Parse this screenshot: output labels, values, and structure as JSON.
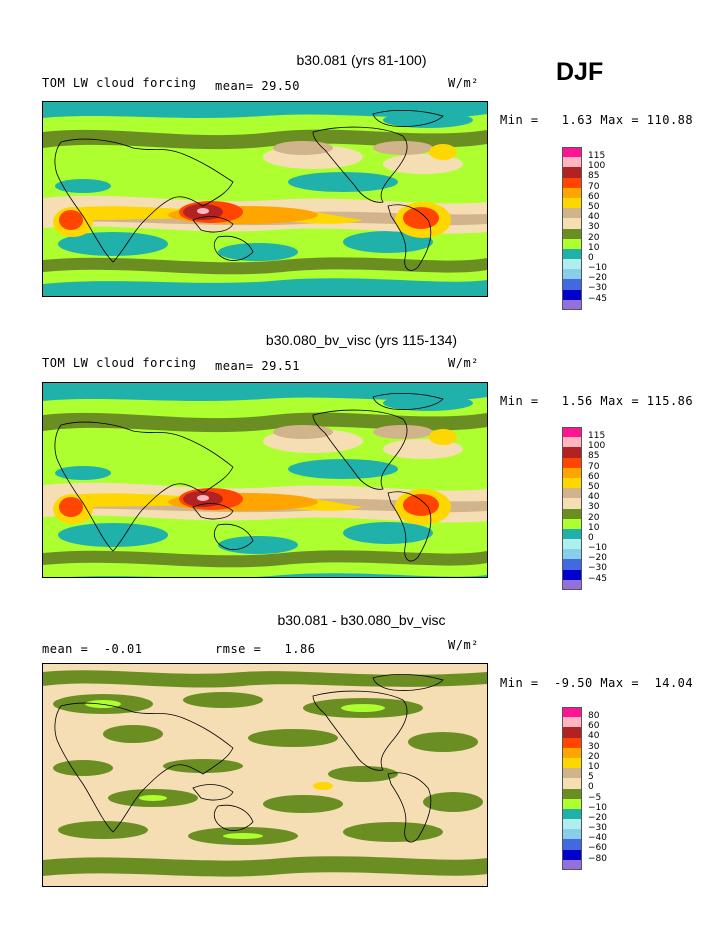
{
  "season": "DJF",
  "units_label": "W/m²",
  "panels": [
    {
      "title": "b30.081 (yrs 81-100)",
      "left_label": "TOM LW cloud forcing",
      "mean_label": "mean=",
      "mean_value": "29.50",
      "range_text": "Min =   1.63 Max = 110.88"
    },
    {
      "title": "b30.080_bv_visc (yrs 115-134)",
      "left_label": "TOM LW cloud forcing",
      "mean_label": "mean=",
      "mean_value": "29.51",
      "range_text": "Min =   1.56 Max = 115.86"
    },
    {
      "title": "b30.081 - b30.080_bv_visc",
      "left_label": "mean =  -0.01",
      "mean_label": "rmse =",
      "mean_value": "1.86",
      "range_text": "Min =  -9.50 Max =  14.04"
    }
  ],
  "legends": [
    {
      "colors": [
        "#ff1493",
        "#ffb6c1",
        "#b22222",
        "#ff4500",
        "#ffa500",
        "#ffd700",
        "#d2b48c",
        "#f5deb3",
        "#6b8e23",
        "#adff2f",
        "#20b2aa",
        "#afeeee",
        "#87ceeb",
        "#4169e1",
        "#0000cd",
        "#9370db"
      ],
      "ticks": [
        "115",
        "100",
        "85",
        "70",
        "60",
        "50",
        "40",
        "30",
        "20",
        "10",
        "0",
        "−10",
        "−20",
        "−30",
        "−45"
      ]
    },
    {
      "colors": [
        "#ff1493",
        "#ffb6c1",
        "#b22222",
        "#ff4500",
        "#ffa500",
        "#ffd700",
        "#d2b48c",
        "#f5deb3",
        "#6b8e23",
        "#adff2f",
        "#20b2aa",
        "#afeeee",
        "#87ceeb",
        "#4169e1",
        "#0000cd",
        "#9370db"
      ],
      "ticks": [
        "115",
        "100",
        "85",
        "70",
        "60",
        "50",
        "40",
        "30",
        "20",
        "10",
        "0",
        "−10",
        "−20",
        "−30",
        "−45"
      ]
    },
    {
      "colors": [
        "#ff1493",
        "#ffb6c1",
        "#b22222",
        "#ff4500",
        "#ffa500",
        "#ffd700",
        "#d2b48c",
        "#f5deb3",
        "#6b8e23",
        "#adff2f",
        "#20b2aa",
        "#afeeee",
        "#87ceeb",
        "#4169e1",
        "#0000cd",
        "#9370db"
      ],
      "ticks": [
        "80",
        "60",
        "40",
        "30",
        "20",
        "10",
        "5",
        "0",
        "−5",
        "−10",
        "−20",
        "−30",
        "−40",
        "−60",
        "−80"
      ]
    }
  ]
}
